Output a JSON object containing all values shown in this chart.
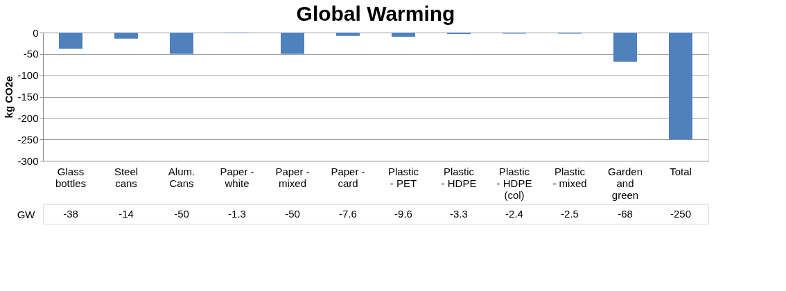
{
  "chart_data": {
    "type": "bar",
    "title": "Global Warming",
    "ylabel": "kg CO2e",
    "categories": [
      "Glass bottles",
      "Steel cans",
      "Alum. Cans",
      "Paper - white",
      "Paper - mixed",
      "Paper - card",
      "Plastic - PET",
      "Plastic - HDPE",
      "Plastic - HDPE (col)",
      "Plastic - mixed",
      "Garden and green",
      "Total"
    ],
    "series": [
      {
        "name": "GW",
        "color": "#4f81bd",
        "values": [
          -38,
          -14,
          -50,
          -1.3,
          -50,
          -7.6,
          -9.6,
          -3.3,
          -2.4,
          -2.5,
          -68,
          -250
        ]
      }
    ],
    "ylim": [
      -300,
      0
    ],
    "yticks": [
      -300,
      -250,
      -200,
      -150,
      -100,
      -50,
      0
    ],
    "grid": "y",
    "data_labels": true
  }
}
